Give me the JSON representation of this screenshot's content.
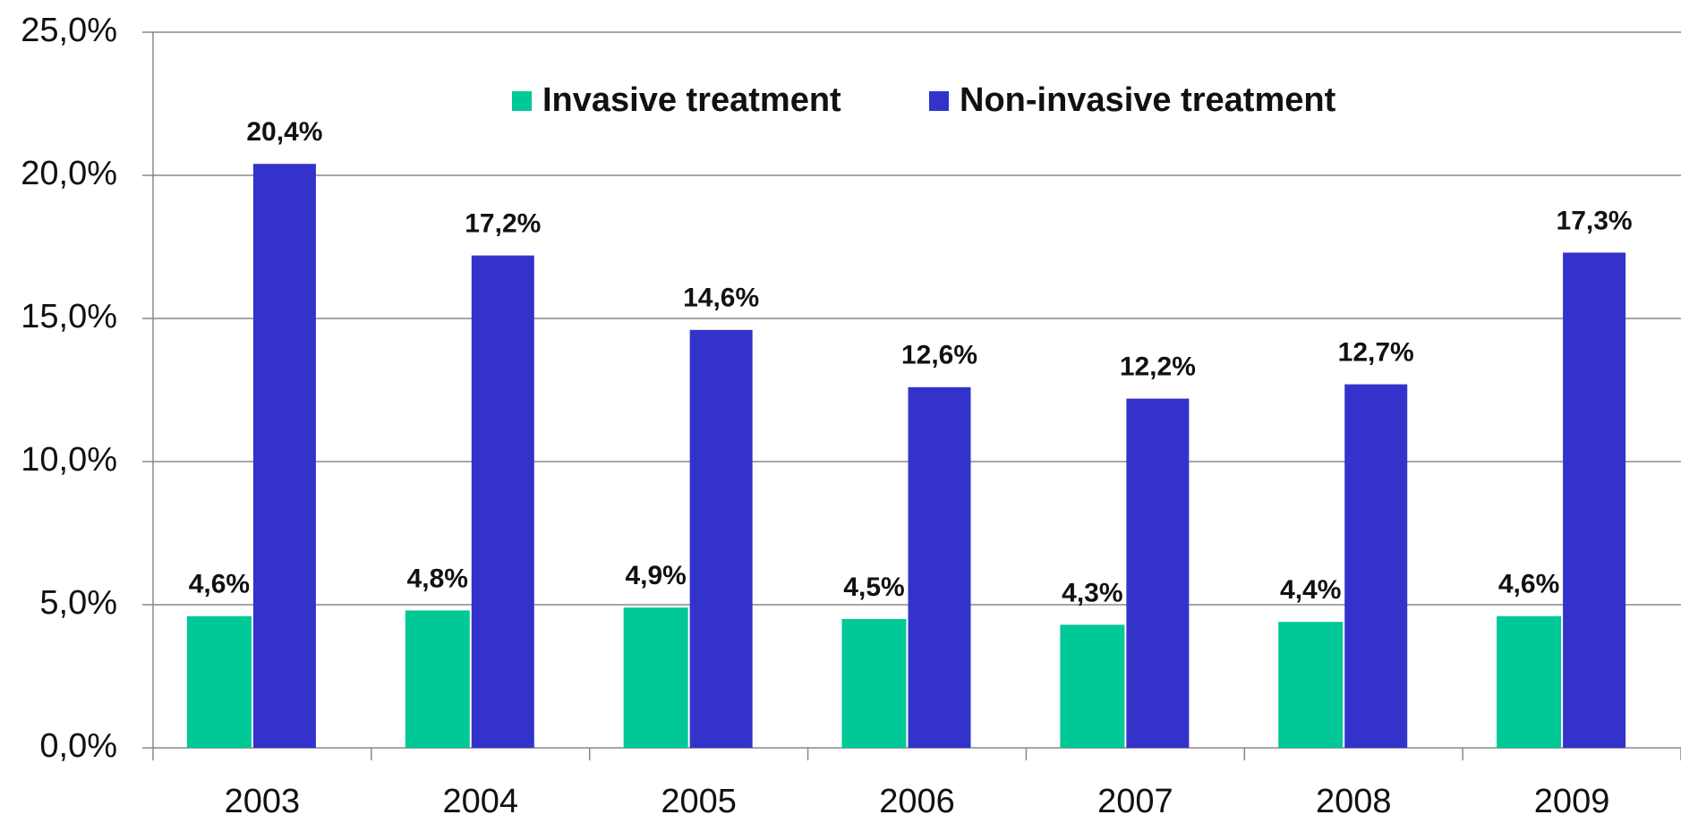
{
  "chart_data": {
    "type": "bar",
    "categories": [
      "2003",
      "2004",
      "2005",
      "2006",
      "2007",
      "2008",
      "2009"
    ],
    "series": [
      {
        "name": "Invasive treatment",
        "color": "#00c896",
        "values": [
          4.6,
          4.8,
          4.9,
          4.5,
          4.3,
          4.4,
          4.6
        ],
        "value_labels": [
          "4,6%",
          "4,8%",
          "4,9%",
          "4,5%",
          "4,3%",
          "4,4%",
          "4,6%"
        ]
      },
      {
        "name": "Non-invasive treatment",
        "color": "#3333cc",
        "values": [
          20.4,
          17.2,
          14.6,
          12.6,
          12.2,
          12.7,
          17.3
        ],
        "value_labels": [
          "20,4%",
          "17,2%",
          "14,6%",
          "12,6%",
          "12,2%",
          "12,7%",
          "17,3%"
        ]
      }
    ],
    "ylim": [
      0,
      25
    ],
    "yticks": [
      {
        "value": 0,
        "label": "0,0%"
      },
      {
        "value": 5,
        "label": "5,0%"
      },
      {
        "value": 10,
        "label": "10,0%"
      },
      {
        "value": 15,
        "label": "15,0%"
      },
      {
        "value": 20,
        "label": "20,0%"
      },
      {
        "value": 25,
        "label": "25,0%"
      }
    ],
    "grid": true,
    "legend": "top"
  }
}
